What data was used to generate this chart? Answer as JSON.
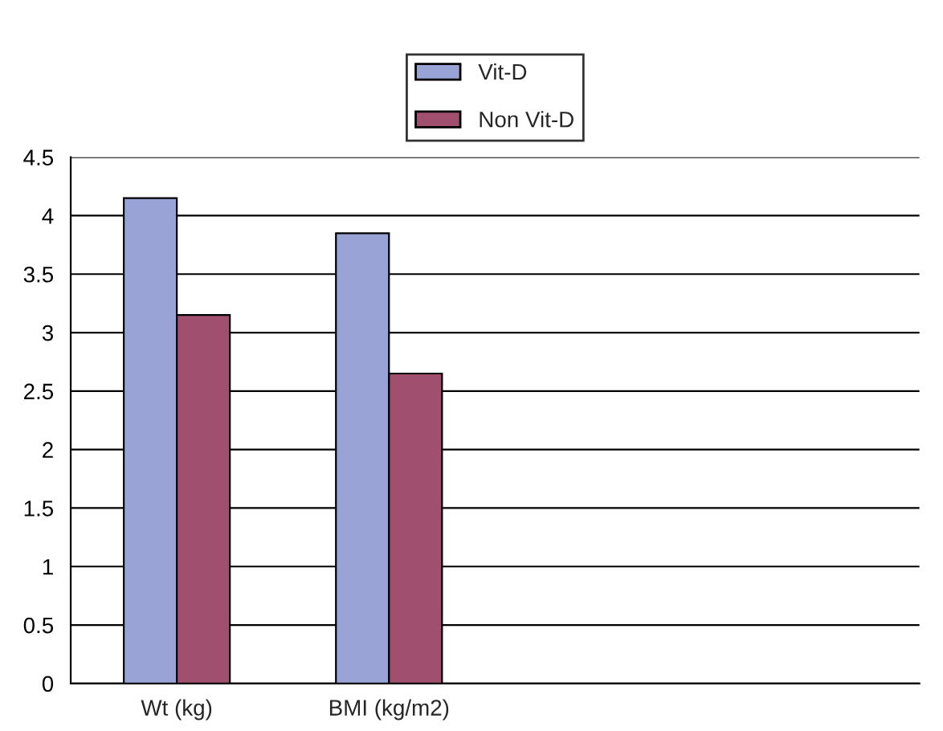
{
  "chart_data": {
    "type": "bar",
    "categories": [
      "Wt (kg)",
      "BMI (kg/m2)",
      null,
      null
    ],
    "series": [
      {
        "name": "Vit-D",
        "color": "#99a3d6",
        "values": [
          4.15,
          3.85,
          null,
          null
        ]
      },
      {
        "name": "Non Vit-D",
        "color": "#a0506e",
        "values": [
          3.15,
          2.65,
          null,
          null
        ]
      }
    ],
    "ylim": [
      0,
      4.5
    ],
    "yticks": [
      0,
      0.5,
      1,
      1.5,
      2,
      2.5,
      3,
      3.5,
      4,
      4.5
    ],
    "grid": "y",
    "legend": "top"
  }
}
